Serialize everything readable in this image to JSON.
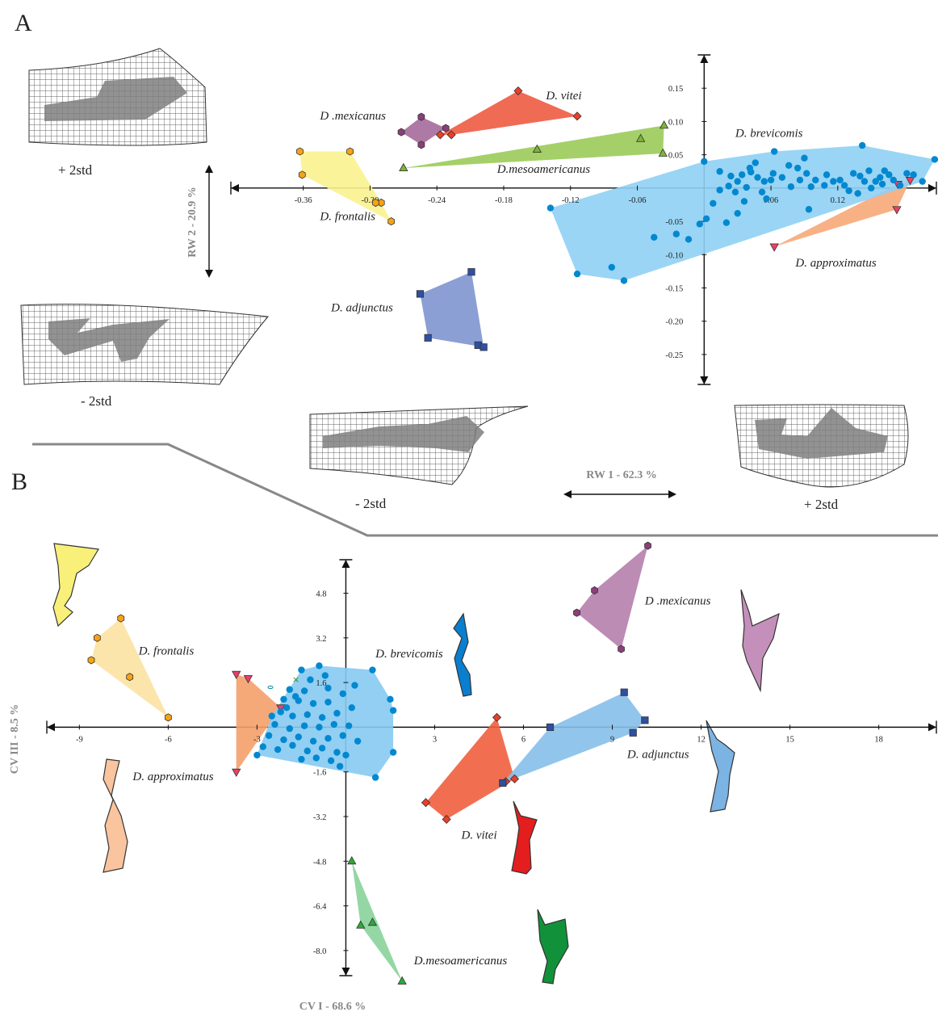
{
  "panels": [
    {
      "letter": "A"
    },
    {
      "letter": "B"
    }
  ],
  "chart_data": [
    {
      "type": "scatter",
      "panel": "A",
      "xlabel": "RW 1 - 62.3 %",
      "ylabel": "RW 2 - 20.9 %",
      "xticks": [
        -0.36,
        -0.3,
        -0.24,
        -0.18,
        -0.12,
        -0.06,
        0.06,
        0.12
      ],
      "xtick_labels": [
        "-0.36",
        "-0.30",
        "-0.24",
        "-0.18",
        "-0.12",
        "-0.06",
        "0.06",
        "0.12"
      ],
      "yticks": [
        0.15,
        0.1,
        0.05,
        -0.05,
        -0.1,
        -0.15,
        -0.2,
        -0.25
      ],
      "ytick_labels": [
        "0.15",
        "0.10",
        "0.05",
        "-0.05",
        "-0.10",
        "-0.15",
        "-0.20",
        "-0.25"
      ],
      "xlim": [
        -0.425,
        0.21
      ],
      "ylim": [
        -0.295,
        0.2
      ],
      "grid": false,
      "series": [
        {
          "name": "D. vitei",
          "color": "#e8402a",
          "marker": "diamond",
          "hull": [
            0
          ],
          "label_at": [
            -0.142,
            0.133
          ],
          "points": [
            [
              -0.167,
              0.146
            ],
            [
              -0.114,
              0.108
            ],
            [
              -0.227,
              0.08
            ],
            [
              -0.237,
              0.08
            ]
          ]
        },
        {
          "name": "D .mexicanus",
          "color": "#8b3f7a",
          "marker": "hexagon",
          "hull": [
            0
          ],
          "label_at": [
            -0.345,
            0.103
          ],
          "points": [
            [
              -0.254,
              0.107
            ],
            [
              -0.272,
              0.084
            ],
            [
              -0.232,
              0.09
            ],
            [
              -0.254,
              0.065
            ]
          ]
        },
        {
          "name": "D.mesoamericanus",
          "color": "#7db536",
          "marker": "triangle",
          "hull": [
            0
          ],
          "label_at": [
            -0.186,
            0.023
          ],
          "points": [
            [
              -0.27,
              0.03
            ],
            [
              -0.15,
              0.058
            ],
            [
              -0.057,
              0.074
            ],
            [
              -0.036,
              0.094
            ],
            [
              -0.037,
              0.052
            ]
          ]
        },
        {
          "name": "D. frontalis",
          "color": "#f5a314",
          "marker": "hexagon",
          "hull": [
            0
          ],
          "label_at": [
            -0.345,
            -0.048
          ],
          "points": [
            [
              -0.363,
              0.055
            ],
            [
              -0.318,
              0.055
            ],
            [
              -0.361,
              0.02
            ],
            [
              -0.29,
              -0.022
            ],
            [
              -0.281,
              -0.05
            ],
            [
              -0.295,
              -0.022
            ]
          ]
        },
        {
          "name": "D. approximatus",
          "color": "#e8406a",
          "marker": "triangle-down",
          "hull": [
            0
          ],
          "label_at": [
            0.082,
            -0.118
          ],
          "points": [
            [
              0.185,
              0.012
            ],
            [
              0.173,
              -0.032
            ],
            [
              0.063,
              -0.088
            ],
            [
              0.174,
              0.006
            ]
          ]
        },
        {
          "name": "D. adjunctus",
          "color": "#2e4fa3",
          "marker": "square",
          "hull": [
            0
          ],
          "label_at": [
            -0.335,
            -0.185
          ],
          "points": [
            [
              -0.255,
              -0.159
            ],
            [
              -0.209,
              -0.126
            ],
            [
              -0.203,
              -0.236
            ],
            [
              -0.198,
              -0.239
            ],
            [
              -0.248,
              -0.225
            ]
          ]
        },
        {
          "name": "D. brevicomis",
          "color": "#0088d0",
          "marker": "circle",
          "hull": [
            0
          ],
          "label_at": [
            0.028,
            0.077
          ],
          "points": [
            [
              0.207,
              0.043
            ],
            [
              0.142,
              0.064
            ],
            [
              0.063,
              0.055
            ],
            [
              0.0,
              0.04
            ],
            [
              -0.138,
              -0.03
            ],
            [
              -0.114,
              -0.129
            ],
            [
              -0.072,
              -0.139
            ],
            [
              -0.083,
              -0.119
            ],
            [
              -0.045,
              -0.074
            ],
            [
              -0.025,
              -0.069
            ],
            [
              -0.014,
              -0.077
            ],
            [
              -0.004,
              -0.054
            ],
            [
              0.002,
              -0.046
            ],
            [
              0.008,
              -0.023
            ],
            [
              0.014,
              -0.003
            ],
            [
              0.022,
              0.003
            ],
            [
              0.02,
              -0.052
            ],
            [
              0.03,
              -0.038
            ],
            [
              0.038,
              0.001
            ],
            [
              0.034,
              0.02
            ],
            [
              0.03,
              0.01
            ],
            [
              0.024,
              0.018
            ],
            [
              0.042,
              0.024
            ],
            [
              0.048,
              0.016
            ],
            [
              0.054,
              0.01
            ],
            [
              0.06,
              0.012
            ],
            [
              0.062,
              0.022
            ],
            [
              0.056,
              -0.016
            ],
            [
              0.052,
              -0.006
            ],
            [
              0.036,
              -0.02
            ],
            [
              0.076,
              0.034
            ],
            [
              0.078,
              0.002
            ],
            [
              0.07,
              0.016
            ],
            [
              0.086,
              0.012
            ],
            [
              0.092,
              0.022
            ],
            [
              0.096,
              0.002
            ],
            [
              0.1,
              0.012
            ],
            [
              0.094,
              -0.032
            ],
            [
              0.11,
              0.02
            ],
            [
              0.116,
              0.01
            ],
            [
              0.122,
              0.012
            ],
            [
              0.126,
              0.004
            ],
            [
              0.13,
              -0.004
            ],
            [
              0.134,
              0.022
            ],
            [
              0.14,
              0.018
            ],
            [
              0.144,
              0.01
            ],
            [
              0.138,
              -0.008
            ],
            [
              0.15,
              0.0
            ],
            [
              0.154,
              0.01
            ],
            [
              0.158,
              0.016
            ],
            [
              0.162,
              0.026
            ],
            [
              0.166,
              0.02
            ],
            [
              0.17,
              0.012
            ],
            [
              0.176,
              0.004
            ],
            [
              0.182,
              0.022
            ],
            [
              0.188,
              0.02
            ],
            [
              0.196,
              0.01
            ],
            [
              0.16,
              0.006
            ],
            [
              0.09,
              0.045
            ],
            [
              0.046,
              0.038
            ],
            [
              0.014,
              0.025
            ],
            [
              0.028,
              -0.006
            ],
            [
              0.041,
              0.03
            ],
            [
              0.084,
              0.03
            ],
            [
              0.108,
              0.004
            ],
            [
              0.148,
              0.026
            ]
          ]
        }
      ],
      "annotations": [
        {
          "text": "+ 2std",
          "anchor": "upper-left deformation grid"
        },
        {
          "text": "- 2std",
          "anchor": "lower-left deformation grid"
        },
        {
          "text": "- 2std",
          "anchor": "bottom-center deformation grid"
        },
        {
          "text": "+ 2std",
          "anchor": "bottom-right deformation grid"
        }
      ]
    },
    {
      "type": "scatter",
      "panel": "B",
      "xlabel": "CV I - 68.6 %",
      "ylabel": "CV III - 8.5 %",
      "xticks": [
        -9,
        -6,
        -3,
        3,
        6,
        9,
        12,
        15,
        18
      ],
      "xtick_labels": [
        "-9",
        "-6",
        "-3",
        "3",
        "6",
        "9",
        "12",
        "15",
        "18"
      ],
      "yticks": [
        4.8,
        3.2,
        1.6,
        -1.6,
        -3.2,
        -4.8,
        -6.4,
        -8.0
      ],
      "ytick_labels": [
        "4.8",
        "3.2",
        "1.6",
        "-1.6",
        "-3.2",
        "-4.8",
        "-6.4",
        "-8.0"
      ],
      "xlim": [
        -10.1,
        20.0
      ],
      "ylim": [
        -8.9,
        6.0
      ],
      "grid": false,
      "series": [
        {
          "name": "D. frontalis",
          "color": "#f5a314",
          "marker": "hexagon",
          "hull": [
            0
          ],
          "label_at": [
            -7.0,
            2.6
          ],
          "points": [
            [
              -7.6,
              3.9
            ],
            [
              -8.4,
              3.2
            ],
            [
              -8.6,
              2.4
            ],
            [
              -7.3,
              1.8
            ],
            [
              -6.0,
              0.35
            ]
          ]
        },
        {
          "name": "D. approximatus",
          "color": "#e8406a",
          "marker": "triangle-down",
          "hull": [
            0
          ],
          "label_at": [
            -7.2,
            -1.9
          ],
          "points": [
            [
              -3.7,
              1.9
            ],
            [
              -3.3,
              1.75
            ],
            [
              -2.2,
              0.7
            ],
            [
              -3.7,
              -1.6
            ]
          ]
        },
        {
          "name": "D. brevicomis",
          "color": "#0088d0",
          "marker": "circle",
          "hull": [
            0
          ],
          "label_at": [
            1.0,
            2.5
          ],
          "points": [
            [
              -0.9,
              2.2
            ],
            [
              -1.5,
              2.05
            ],
            [
              0.9,
              2.05
            ],
            [
              1.5,
              1.0
            ],
            [
              1.6,
              0.6
            ],
            [
              1.6,
              -0.9
            ],
            [
              1.0,
              -1.8
            ],
            [
              -3.0,
              -1.0
            ],
            [
              -1.9,
              1.35
            ],
            [
              -1.4,
              1.3
            ],
            [
              -0.6,
              1.4
            ],
            [
              -0.1,
              1.2
            ],
            [
              -2.1,
              1.0
            ],
            [
              -1.6,
              0.95
            ],
            [
              -1.1,
              0.85
            ],
            [
              -0.6,
              0.9
            ],
            [
              -2.2,
              0.55
            ],
            [
              -1.8,
              0.4
            ],
            [
              -1.3,
              0.45
            ],
            [
              -0.8,
              0.35
            ],
            [
              -0.3,
              0.5
            ],
            [
              0.2,
              0.7
            ],
            [
              -2.4,
              0.1
            ],
            [
              -1.9,
              -0.05
            ],
            [
              -1.4,
              0.05
            ],
            [
              -0.9,
              0.0
            ],
            [
              -0.4,
              0.1
            ],
            [
              0.1,
              0.05
            ],
            [
              -2.6,
              -0.3
            ],
            [
              -2.1,
              -0.45
            ],
            [
              -1.6,
              -0.35
            ],
            [
              -1.1,
              -0.5
            ],
            [
              -0.6,
              -0.4
            ],
            [
              -0.1,
              -0.3
            ],
            [
              -2.8,
              -0.7
            ],
            [
              -2.3,
              -0.8
            ],
            [
              -1.8,
              -0.65
            ],
            [
              -1.3,
              -0.85
            ],
            [
              -0.8,
              -0.75
            ],
            [
              -0.3,
              -0.9
            ],
            [
              -1.5,
              -1.15
            ],
            [
              -1.0,
              -1.1
            ],
            [
              -0.5,
              -1.2
            ],
            [
              0.0,
              -1.0
            ],
            [
              0.4,
              -0.5
            ],
            [
              -2.0,
              0.7
            ],
            [
              -0.2,
              -1.4
            ],
            [
              -1.7,
              1.1
            ],
            [
              0.3,
              1.5
            ],
            [
              -1.2,
              1.7
            ],
            [
              -0.7,
              1.85
            ],
            [
              -2.5,
              0.4
            ]
          ]
        },
        {
          "name": "D. vitei",
          "color": "#e8402a",
          "marker": "diamond",
          "hull": [
            0
          ],
          "label_at": [
            3.9,
            -4.0
          ],
          "points": [
            [
              5.1,
              0.35
            ],
            [
              5.7,
              -1.85
            ],
            [
              5.4,
              -1.95
            ],
            [
              2.7,
              -2.7
            ],
            [
              3.4,
              -3.3
            ]
          ]
        },
        {
          "name": "D. adjunctus",
          "color": "#2e4fa3",
          "marker": "square",
          "hull": [
            0
          ],
          "label_at": [
            9.5,
            -1.1
          ],
          "points": [
            [
              6.9,
              0.0
            ],
            [
              9.4,
              1.25
            ],
            [
              10.1,
              0.25
            ],
            [
              9.7,
              -0.2
            ],
            [
              5.3,
              -2.0
            ]
          ]
        },
        {
          "name": "D .mexicanus",
          "color": "#8b3f7a",
          "marker": "hexagon",
          "hull": [
            0
          ],
          "label_at": [
            10.1,
            4.4
          ],
          "points": [
            [
              10.2,
              6.5
            ],
            [
              8.4,
              4.9
            ],
            [
              7.8,
              4.1
            ],
            [
              9.3,
              2.8
            ]
          ]
        },
        {
          "name": "D.mesoamericanus",
          "color": "#2ea83a",
          "marker": "triangle",
          "hull": [
            0
          ],
          "label_at": [
            2.3,
            -8.5
          ],
          "points": [
            [
              0.2,
              -4.8
            ],
            [
              0.5,
              -7.1
            ],
            [
              0.9,
              -7.0
            ],
            [
              1.9,
              -9.1
            ]
          ]
        }
      ],
      "annotations": []
    }
  ]
}
